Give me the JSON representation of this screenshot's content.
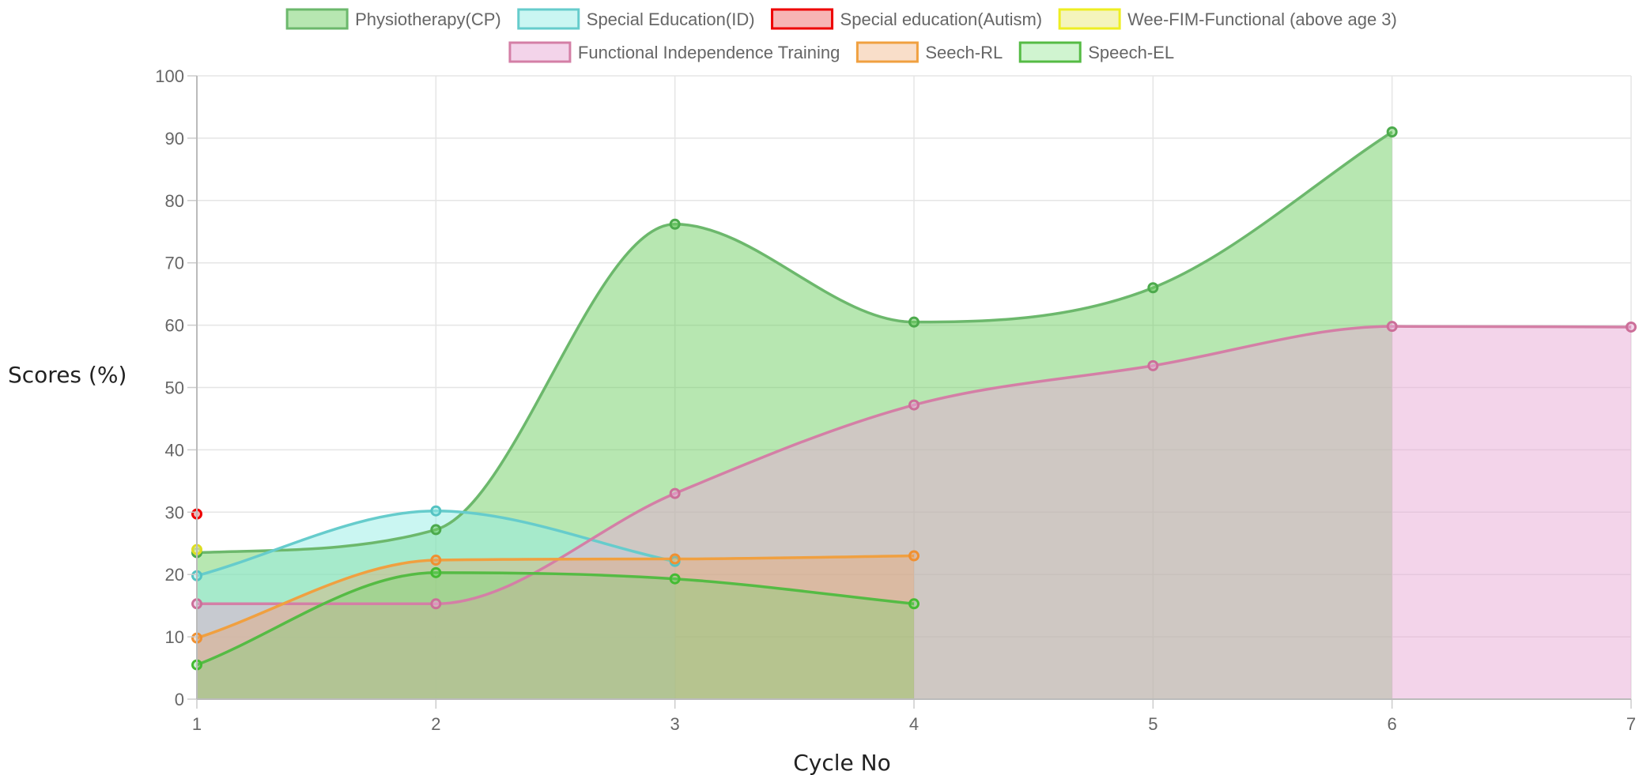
{
  "chart_data": {
    "type": "area",
    "x": [
      1,
      2,
      3,
      4,
      5,
      6,
      7
    ],
    "xlabel": "Cycle No",
    "ylabel": "Scores (%)",
    "ylim": [
      0,
      100
    ],
    "xlim": [
      1,
      7
    ],
    "ytick_step": 10,
    "grid": true,
    "legend_position": "top",
    "series": [
      {
        "name": "Physiotherapy(CP)",
        "x": [
          1,
          2,
          3,
          4,
          5,
          6
        ],
        "values": [
          23.5,
          27.2,
          76.2,
          60.5,
          66.0,
          91.0
        ],
        "line_color": "#6cb86c",
        "fill_color": "rgba(104,204,92,0.48)",
        "point_color": "#4caa4c"
      },
      {
        "name": "Special Education(ID)",
        "x": [
          1,
          2,
          3
        ],
        "values": [
          19.8,
          30.2,
          22.1
        ],
        "line_color": "#66cccc",
        "fill_color": "rgba(150,238,230,0.5)",
        "point_color": "#55c3c3"
      },
      {
        "name": "Special education(Autism)",
        "x": [
          1
        ],
        "values": [
          29.7
        ],
        "line_color": "#ee0000",
        "fill_color": "rgba(244,150,150,0.7)",
        "point_color": "#ee0000"
      },
      {
        "name": "Wee-FIM-Functional (above age 3)",
        "x": [
          1
        ],
        "values": [
          24.0
        ],
        "line_color": "#eeee22",
        "fill_color": "rgba(240,240,160,0.7)",
        "point_color": "#dddd22"
      },
      {
        "name": "Functional Independence Training",
        "x": [
          1,
          2,
          3,
          4,
          5,
          6,
          7
        ],
        "values": [
          15.3,
          15.3,
          33.0,
          47.2,
          53.5,
          59.8,
          59.7
        ],
        "line_color": "#d47fa6",
        "fill_color": "rgba(232,170,214,0.5)",
        "point_color": "#cc6f99"
      },
      {
        "name": "Seech-RL",
        "x": [
          1,
          2,
          3,
          4
        ],
        "values": [
          9.8,
          22.3,
          22.5,
          23.0
        ],
        "line_color": "#f0a040",
        "fill_color": "rgba(238,160,100,0.35)",
        "point_color": "#f09030"
      },
      {
        "name": "Speech-EL",
        "x": [
          1,
          2,
          3,
          4
        ],
        "values": [
          5.5,
          20.3,
          19.3,
          15.3
        ],
        "line_color": "#55bb44",
        "fill_color": "rgba(100,220,100,0.3)",
        "point_color": "#44bb33"
      }
    ]
  }
}
